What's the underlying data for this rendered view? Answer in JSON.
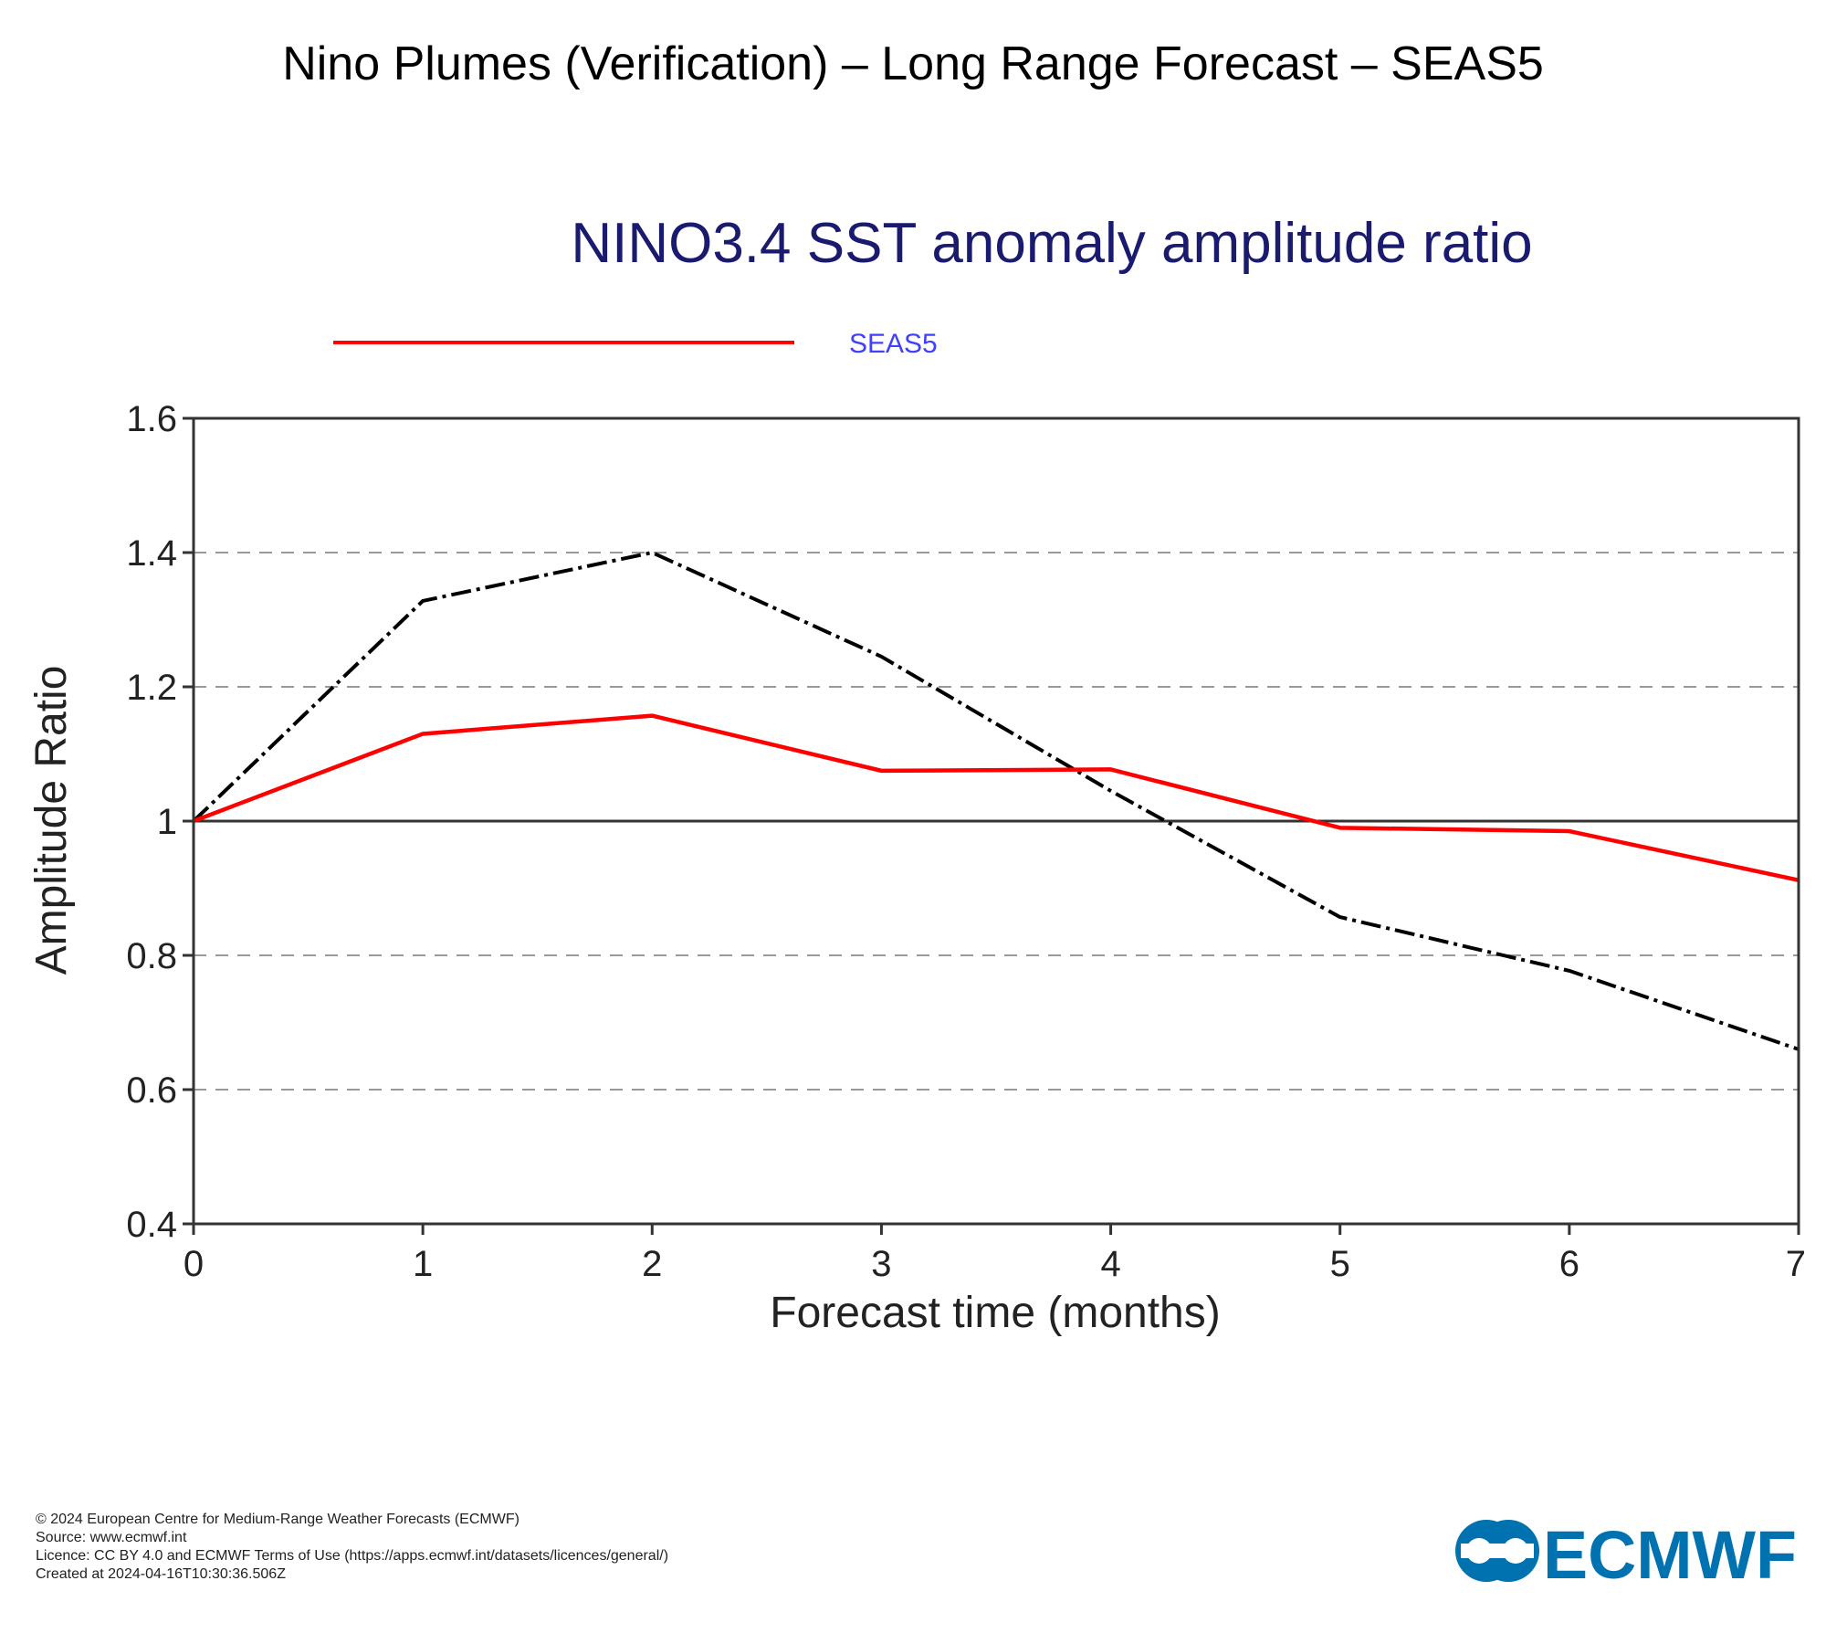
{
  "page_title": "Nino Plumes (Verification) – Long Range Forecast – SEAS5",
  "footer": {
    "copyright": "© 2024 European Centre for Medium-Range Weather Forecasts (ECMWF)",
    "source": "Source: www.ecmwf.int",
    "licence": "Licence: CC BY 4.0 and ECMWF Terms of Use (https://apps.ecmwf.int/datasets/licences/general/)",
    "created": "Created at 2024-04-16T10:30:36.506Z"
  },
  "logo": {
    "text": "ECMWF",
    "color": "#0072b0"
  },
  "chart_data": {
    "type": "line",
    "title": "NINO3.4 SST anomaly amplitude ratio",
    "xlabel": "Forecast time (months)",
    "ylabel": "Amplitude Ratio",
    "xlim": [
      0,
      7
    ],
    "ylim": [
      0.4,
      1.6
    ],
    "xticks": [
      "0",
      "1",
      "2",
      "3",
      "4",
      "5",
      "6",
      "7"
    ],
    "yticks": [
      "0.4",
      "0.6",
      "0.8",
      "1",
      "1.2",
      "1.4",
      "1.6"
    ],
    "grid": "dashed horizontal",
    "reference_line": 1,
    "legend_position": "top-left",
    "x": [
      0,
      1,
      2,
      3,
      4,
      5,
      6,
      7
    ],
    "series": [
      {
        "name": "SEAS5",
        "values": [
          1.0,
          1.13,
          1.157,
          1.075,
          1.077,
          0.99,
          0.985,
          0.912
        ],
        "color": "#ff0000",
        "style": "solid"
      },
      {
        "values": [
          1.0,
          1.328,
          1.4,
          1.245,
          1.045,
          0.857,
          0.777,
          0.66
        ],
        "color": "#000000",
        "style": "dash-dot"
      }
    ]
  }
}
